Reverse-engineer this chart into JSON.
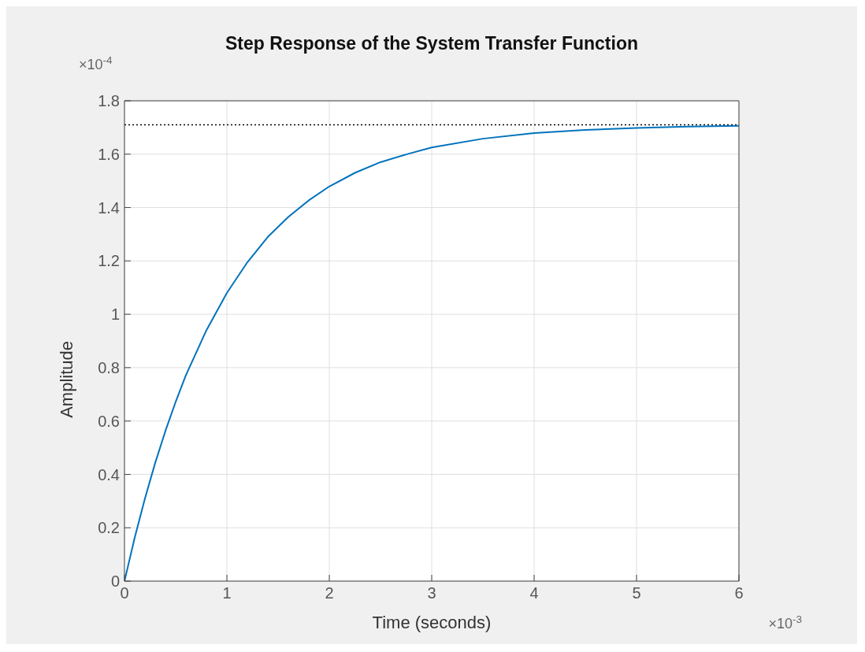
{
  "chart_data": {
    "type": "line",
    "title": "Step Response of the System Transfer Function",
    "xlabel": "Time (seconds)",
    "ylabel": "Amplitude",
    "annotations": [
      "×10$^{-4}$",
      "×10$^{-3}$"
    ],
    "x": [
      0,
      0.1,
      0.2,
      0.3,
      0.4,
      0.5,
      0.6,
      0.8,
      1,
      1.2,
      1.4,
      1.6,
      1.8,
      2,
      2.25,
      2.5,
      2.75,
      3,
      3.5,
      4,
      4.5,
      5,
      5.5,
      6
    ],
    "series": [
      {
        "color": "#0072bd",
        "values": [
          0,
          0.163,
          0.31,
          0.443,
          0.563,
          0.672,
          0.772,
          0.94,
          1.08,
          1.195,
          1.29,
          1.365,
          1.427,
          1.479,
          1.53,
          1.57,
          1.599,
          1.625,
          1.658,
          1.679,
          1.691,
          1.698,
          1.703,
          1.706
        ]
      }
    ],
    "xlim": [
      0,
      6
    ],
    "xticks": [
      0,
      1,
      2,
      3,
      4,
      5,
      6
    ],
    "ylim": [
      0,
      1.8
    ],
    "yticks": [
      0,
      0.2,
      0.4,
      0.6,
      0.8,
      1,
      1.2,
      1.4,
      1.6,
      1.8
    ],
    "ref_lines": [
      {
        "axis": "y",
        "value": 1.71,
        "color": "#000000",
        "line_style": "dotted"
      }
    ],
    "grid": true,
    "legend": false,
    "marker": "none",
    "line_style": "solid"
  }
}
